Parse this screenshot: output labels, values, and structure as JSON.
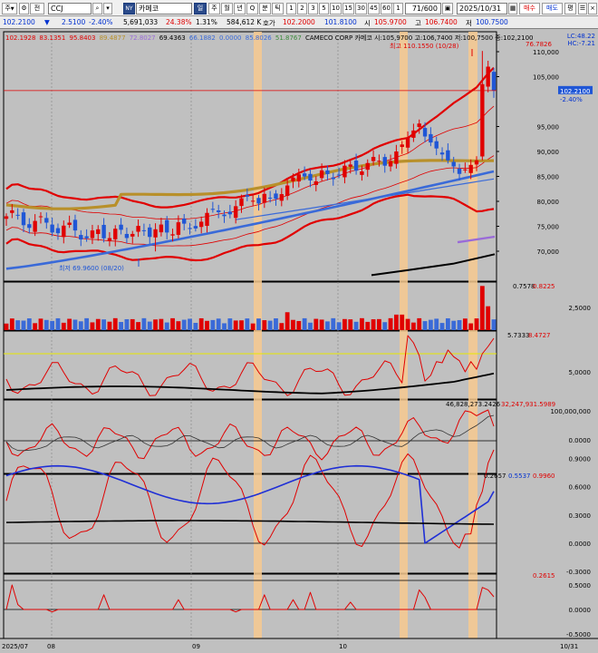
{
  "toolbar": {
    "mode1": "주",
    "mode1_arrow": "▼",
    "mode2": "전",
    "symbol": "CCJ",
    "market_badge": "NY",
    "company": "카메코",
    "info_button": "일",
    "periods": [
      "주",
      "월",
      "년",
      "Q",
      "분",
      "틱"
    ],
    "numbers": [
      "1",
      "2",
      "3",
      "5",
      "10",
      "15",
      "30",
      "45",
      "60",
      "1"
    ],
    "count": "71/600",
    "date": "2025/10/31",
    "buy": "매수",
    "sell": "매도",
    "eval": "평"
  },
  "quote": {
    "price": "102.2100",
    "change_sign": "▼",
    "change": "2.5100",
    "change_pct": "-2.40%",
    "volume": "5,691,033",
    "volume_ratio": "24.38%",
    "turnover_ratio": "1.31%",
    "amount": "584,612 K",
    "ask_label": "호가",
    "ask": "102.2000",
    "bid": "101.8100",
    "open_label": "시",
    "open": "105.9700",
    "high_label": "고",
    "high": "106.7400",
    "low_label": "저",
    "low": "100.7500"
  },
  "price_panel": {
    "legend_ma": [
      "102.1928",
      "83.1351",
      "95.8403",
      "89.4877",
      "72.8027",
      "69.4363",
      "66.1882",
      "0.0000",
      "85.8026",
      "51.8767"
    ],
    "legend_ma_colors": [
      "#e00000",
      "#e00000",
      "#e00000",
      "#b8902a",
      "#9a6ad8",
      "#000000",
      "#3a6ad8",
      "#3a6ad8",
      "#3a6ad8",
      "#3a8a3a"
    ],
    "stock_label": "CAMECO CORP 카메코 시:105,9700 고:106,7400 저:100,7500 종:102,2100",
    "lc": "LC:48.22",
    "hc": "HC:-7.21",
    "right_value": "76.7826",
    "high_marker": "최고 110.1550 (10/28)",
    "low_marker": "최저 69.9600 (08/20)",
    "current_price": "102.2100",
    "current_pct": "-2.40%",
    "y_ticks": [
      "110,000",
      "105,000",
      "95,000",
      "90,000",
      "85,000",
      "80,000",
      "75,000",
      "70,000"
    ],
    "y_values": [
      110,
      105,
      95,
      90,
      85,
      80,
      75,
      70
    ]
  },
  "volume_panel": {
    "legend": [
      "0.7578",
      "0.8225"
    ],
    "y_ticks": [
      "2,5000"
    ]
  },
  "ind1": {
    "legend": [
      "5.7333",
      "8.4727"
    ],
    "y_ticks": [
      "5,0000"
    ]
  },
  "ind2": {
    "legend": [
      "46,828,273.2426",
      "32,247,931.5989"
    ],
    "y_ticks": [
      "100,000,000",
      "0.0000"
    ]
  },
  "ind3": {
    "legend": [
      "0.2657",
      "0.5537",
      "0.9960"
    ],
    "y_ticks": [
      "0.9000",
      "0.6000",
      "0.3000",
      "0.0000",
      "-0.3000"
    ]
  },
  "ind4": {
    "legend": [
      "0.2615"
    ],
    "y_ticks": [
      "0.5000",
      "0.0000",
      "-0.5000"
    ]
  },
  "x_labels": [
    "2025/07",
    "08",
    "09",
    "10",
    "10/31"
  ],
  "colors": {
    "up": "#e00000",
    "down": "#1f56d6",
    "highlight": "#f7c98f",
    "ma_gold": "#b8902a"
  }
}
